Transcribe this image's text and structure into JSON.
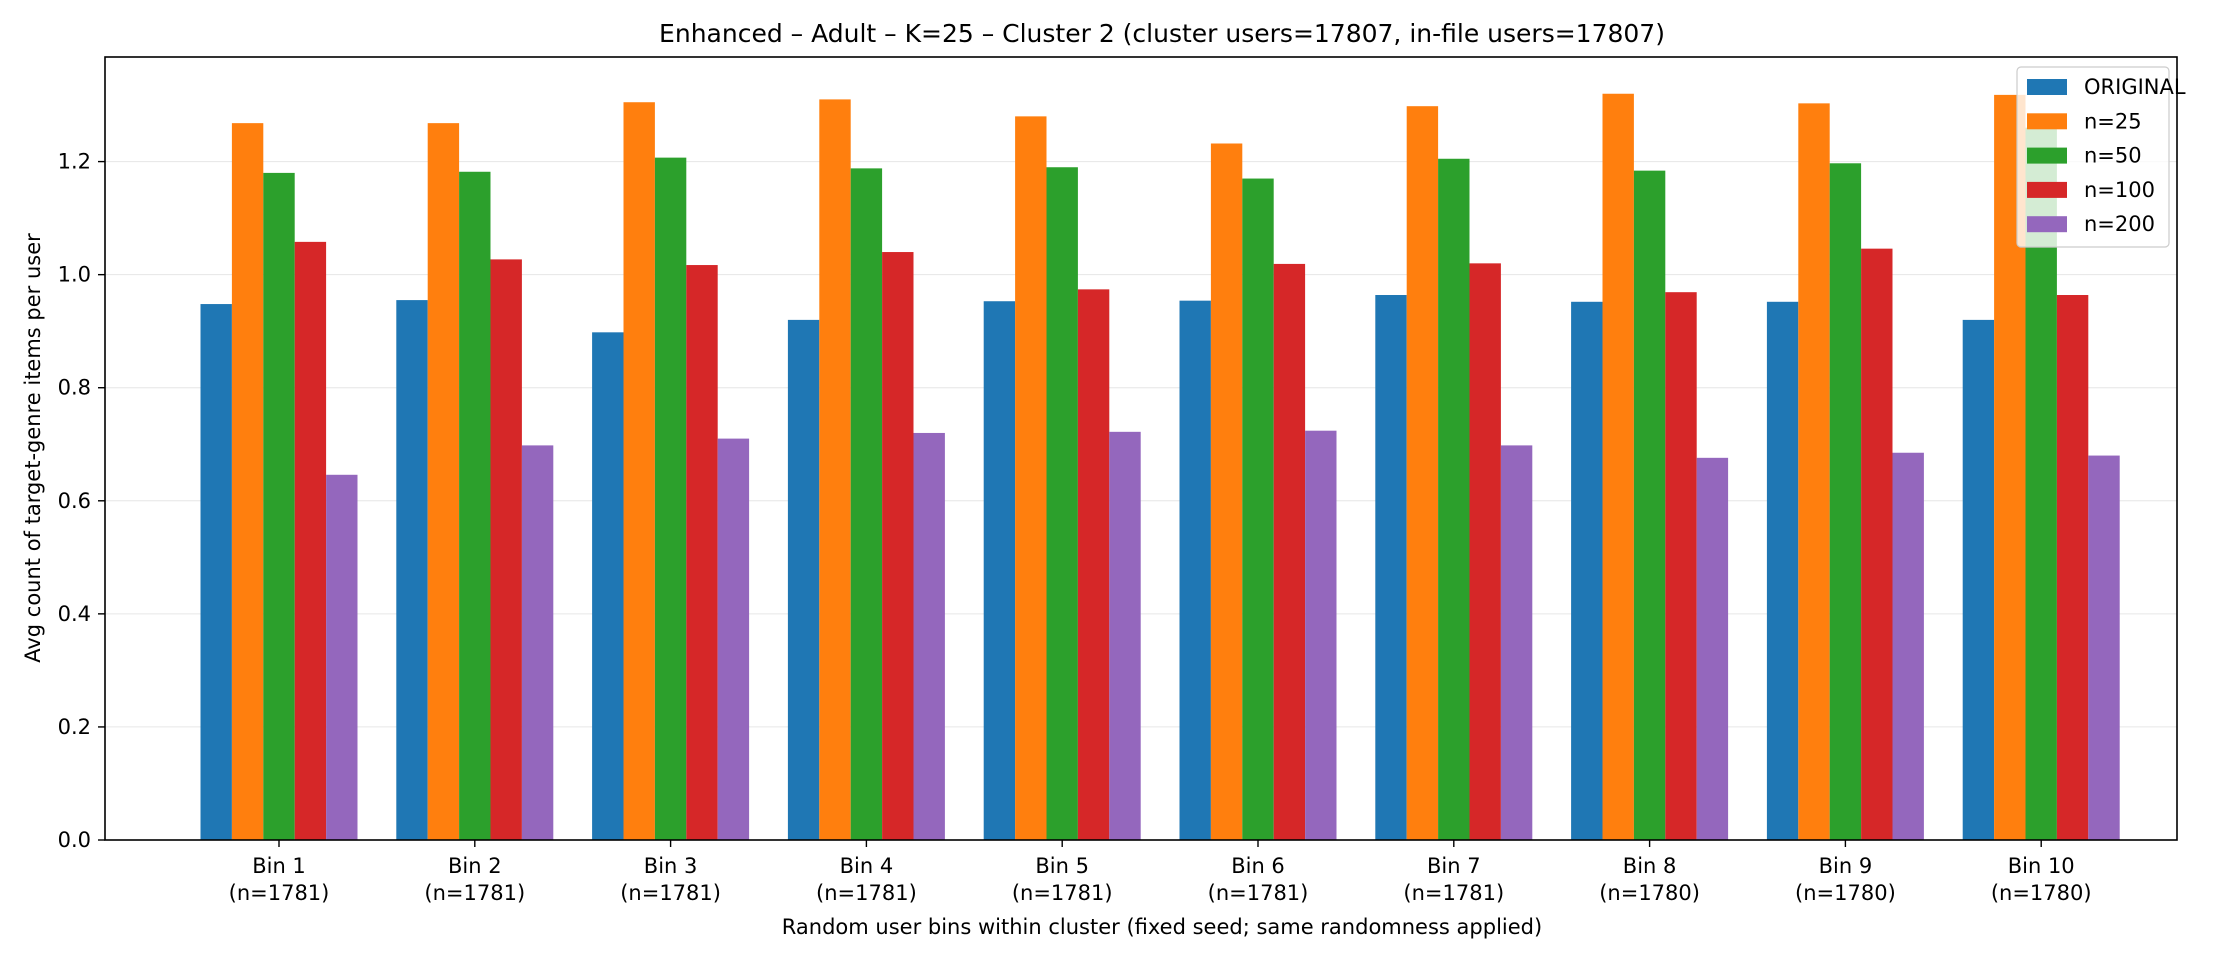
{
  "chart_data": {
    "type": "bar",
    "title": "Enhanced – Adult – K=25 – Cluster 2 (cluster users=17807, in-file users=17807)",
    "xlabel": "Random user bins within cluster (fixed seed; same randomness applied)",
    "ylabel": "Avg count of target-genre items per user",
    "categories": [
      "Bin 1",
      "Bin 2",
      "Bin 3",
      "Bin 4",
      "Bin 5",
      "Bin 6",
      "Bin 7",
      "Bin 8",
      "Bin 9",
      "Bin 10"
    ],
    "category_sublabels": [
      "(n=1781)",
      "(n=1781)",
      "(n=1781)",
      "(n=1781)",
      "(n=1781)",
      "(n=1781)",
      "(n=1781)",
      "(n=1780)",
      "(n=1780)",
      "(n=1780)"
    ],
    "series": [
      {
        "name": "ORIGINAL",
        "color": "#1f77b4",
        "values": [
          0.948,
          0.955,
          0.898,
          0.92,
          0.953,
          0.954,
          0.964,
          0.952,
          0.952,
          0.92
        ]
      },
      {
        "name": "n=25",
        "color": "#ff7f0e",
        "values": [
          1.268,
          1.268,
          1.305,
          1.31,
          1.28,
          1.232,
          1.298,
          1.32,
          1.303,
          1.318
        ]
      },
      {
        "name": "n=50",
        "color": "#2ca02c",
        "values": [
          1.18,
          1.182,
          1.207,
          1.188,
          1.19,
          1.17,
          1.205,
          1.184,
          1.197,
          1.26
        ]
      },
      {
        "name": "n=100",
        "color": "#d62728",
        "values": [
          1.058,
          1.027,
          1.017,
          1.04,
          0.974,
          1.019,
          1.02,
          0.969,
          1.046,
          0.964
        ]
      },
      {
        "name": "n=200",
        "color": "#9467bd",
        "values": [
          0.646,
          0.698,
          0.71,
          0.72,
          0.722,
          0.724,
          0.698,
          0.676,
          0.685,
          0.68
        ]
      }
    ],
    "ylim": [
      0,
      1.385
    ],
    "yticks": [
      "0.0",
      "0.2",
      "0.4",
      "0.6",
      "0.8",
      "1.0",
      "1.2"
    ],
    "grid": "horizontal",
    "legend_position": "top-right"
  }
}
